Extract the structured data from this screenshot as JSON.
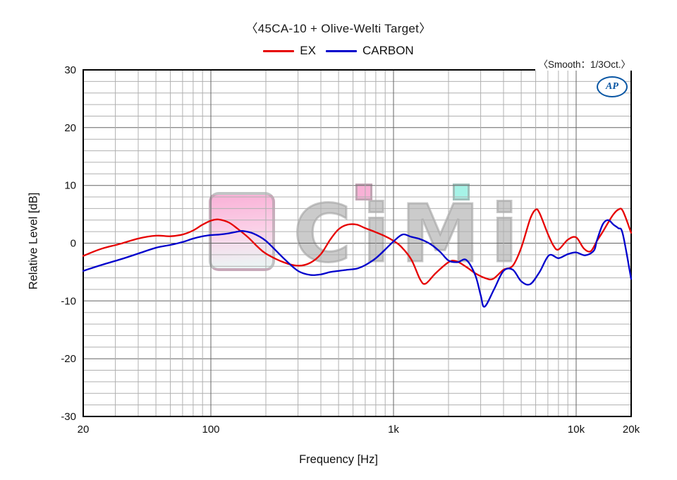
{
  "title": "〈45CA-10 + Olive-Welti Target〉",
  "smooth_label": "〈Smooth：1/3Oct.〉",
  "logo": "AP",
  "watermark": {
    "text": "CiMi"
  },
  "legend": [
    {
      "label": "EX",
      "color": "#e60000"
    },
    {
      "label": "CARBON",
      "color": "#0000cc"
    }
  ],
  "chart_data": {
    "type": "line",
    "title": "45CA-10 + Olive-Welti Target",
    "xlabel": "Frequency [Hz]",
    "ylabel": "Relative Level [dB]",
    "x_scale": "log",
    "xlim": [
      20,
      20000
    ],
    "ylim": [
      -30,
      30
    ],
    "grid": {
      "y_minor_step": 2,
      "y_major_step": 10,
      "x_minor": "log-decades",
      "on": true
    },
    "x_ticks": [
      {
        "v": 20,
        "label": "20"
      },
      {
        "v": 100,
        "label": "100"
      },
      {
        "v": 1000,
        "label": "1k"
      },
      {
        "v": 10000,
        "label": "10k"
      },
      {
        "v": 20000,
        "label": "20k"
      }
    ],
    "y_ticks": [
      {
        "v": 30,
        "label": "30"
      },
      {
        "v": 20,
        "label": "20"
      },
      {
        "v": 10,
        "label": "10"
      },
      {
        "v": 0,
        "label": "0"
      },
      {
        "v": -10,
        "label": "-10"
      },
      {
        "v": -20,
        "label": "-20"
      },
      {
        "v": -30,
        "label": "-30"
      }
    ],
    "series": [
      {
        "name": "EX",
        "color": "#e60000",
        "points": [
          [
            20,
            -2.2
          ],
          [
            25,
            -1.0
          ],
          [
            32,
            -0.1
          ],
          [
            40,
            0.8
          ],
          [
            50,
            1.3
          ],
          [
            60,
            1.2
          ],
          [
            70,
            1.5
          ],
          [
            80,
            2.2
          ],
          [
            90,
            3.2
          ],
          [
            100,
            3.9
          ],
          [
            110,
            4.1
          ],
          [
            125,
            3.6
          ],
          [
            140,
            2.5
          ],
          [
            160,
            1.0
          ],
          [
            180,
            -0.6
          ],
          [
            200,
            -1.8
          ],
          [
            250,
            -3.3
          ],
          [
            300,
            -3.9
          ],
          [
            350,
            -3.4
          ],
          [
            400,
            -1.9
          ],
          [
            450,
            0.6
          ],
          [
            500,
            2.4
          ],
          [
            560,
            3.2
          ],
          [
            630,
            3.2
          ],
          [
            700,
            2.6
          ],
          [
            800,
            1.9
          ],
          [
            900,
            1.2
          ],
          [
            1000,
            0.4
          ],
          [
            1100,
            -0.6
          ],
          [
            1250,
            -2.8
          ],
          [
            1400,
            -6.3
          ],
          [
            1500,
            -7.0
          ],
          [
            1700,
            -5.2
          ],
          [
            2000,
            -3.3
          ],
          [
            2200,
            -3.1
          ],
          [
            2500,
            -4.1
          ],
          [
            2800,
            -5.2
          ],
          [
            3150,
            -6.0
          ],
          [
            3500,
            -6.2
          ],
          [
            4000,
            -4.6
          ],
          [
            4500,
            -3.9
          ],
          [
            5000,
            -0.8
          ],
          [
            5600,
            4.2
          ],
          [
            6000,
            5.8
          ],
          [
            6300,
            5.2
          ],
          [
            7000,
            1.6
          ],
          [
            7500,
            -0.4
          ],
          [
            8000,
            -1.1
          ],
          [
            9000,
            0.6
          ],
          [
            10000,
            1.0
          ],
          [
            11000,
            -0.9
          ],
          [
            12000,
            -1.4
          ],
          [
            13000,
            0.4
          ],
          [
            14000,
            2.0
          ],
          [
            15000,
            3.6
          ],
          [
            16000,
            5.0
          ],
          [
            17000,
            5.8
          ],
          [
            18000,
            5.6
          ],
          [
            20000,
            1.8
          ]
        ]
      },
      {
        "name": "CARBON",
        "color": "#0000cc",
        "points": [
          [
            20,
            -4.8
          ],
          [
            25,
            -3.8
          ],
          [
            32,
            -2.8
          ],
          [
            40,
            -1.8
          ],
          [
            50,
            -0.8
          ],
          [
            60,
            -0.3
          ],
          [
            70,
            0.2
          ],
          [
            80,
            0.8
          ],
          [
            90,
            1.2
          ],
          [
            100,
            1.4
          ],
          [
            112,
            1.5
          ],
          [
            125,
            1.7
          ],
          [
            140,
            2.0
          ],
          [
            150,
            2.1
          ],
          [
            170,
            1.7
          ],
          [
            200,
            0.4
          ],
          [
            250,
            -2.6
          ],
          [
            300,
            -4.8
          ],
          [
            350,
            -5.5
          ],
          [
            400,
            -5.4
          ],
          [
            450,
            -5.0
          ],
          [
            500,
            -4.8
          ],
          [
            560,
            -4.6
          ],
          [
            630,
            -4.4
          ],
          [
            700,
            -3.8
          ],
          [
            800,
            -2.6
          ],
          [
            900,
            -1.1
          ],
          [
            1000,
            0.3
          ],
          [
            1120,
            1.5
          ],
          [
            1250,
            1.1
          ],
          [
            1400,
            0.7
          ],
          [
            1600,
            -0.2
          ],
          [
            1800,
            -1.5
          ],
          [
            2000,
            -3.0
          ],
          [
            2240,
            -3.3
          ],
          [
            2500,
            -2.9
          ],
          [
            2800,
            -5.5
          ],
          [
            3000,
            -9.0
          ],
          [
            3150,
            -11.0
          ],
          [
            3550,
            -8.0
          ],
          [
            4000,
            -4.8
          ],
          [
            4500,
            -4.6
          ],
          [
            5000,
            -6.6
          ],
          [
            5600,
            -7.1
          ],
          [
            6300,
            -5.0
          ],
          [
            7100,
            -2.1
          ],
          [
            8000,
            -2.6
          ],
          [
            9000,
            -1.9
          ],
          [
            10000,
            -1.6
          ],
          [
            11200,
            -2.1
          ],
          [
            12500,
            -1.3
          ],
          [
            13000,
            0.5
          ],
          [
            14000,
            3.3
          ],
          [
            15000,
            4.0
          ],
          [
            16000,
            3.2
          ],
          [
            17000,
            2.6
          ],
          [
            18000,
            1.6
          ],
          [
            20000,
            -6.2
          ]
        ]
      }
    ]
  }
}
